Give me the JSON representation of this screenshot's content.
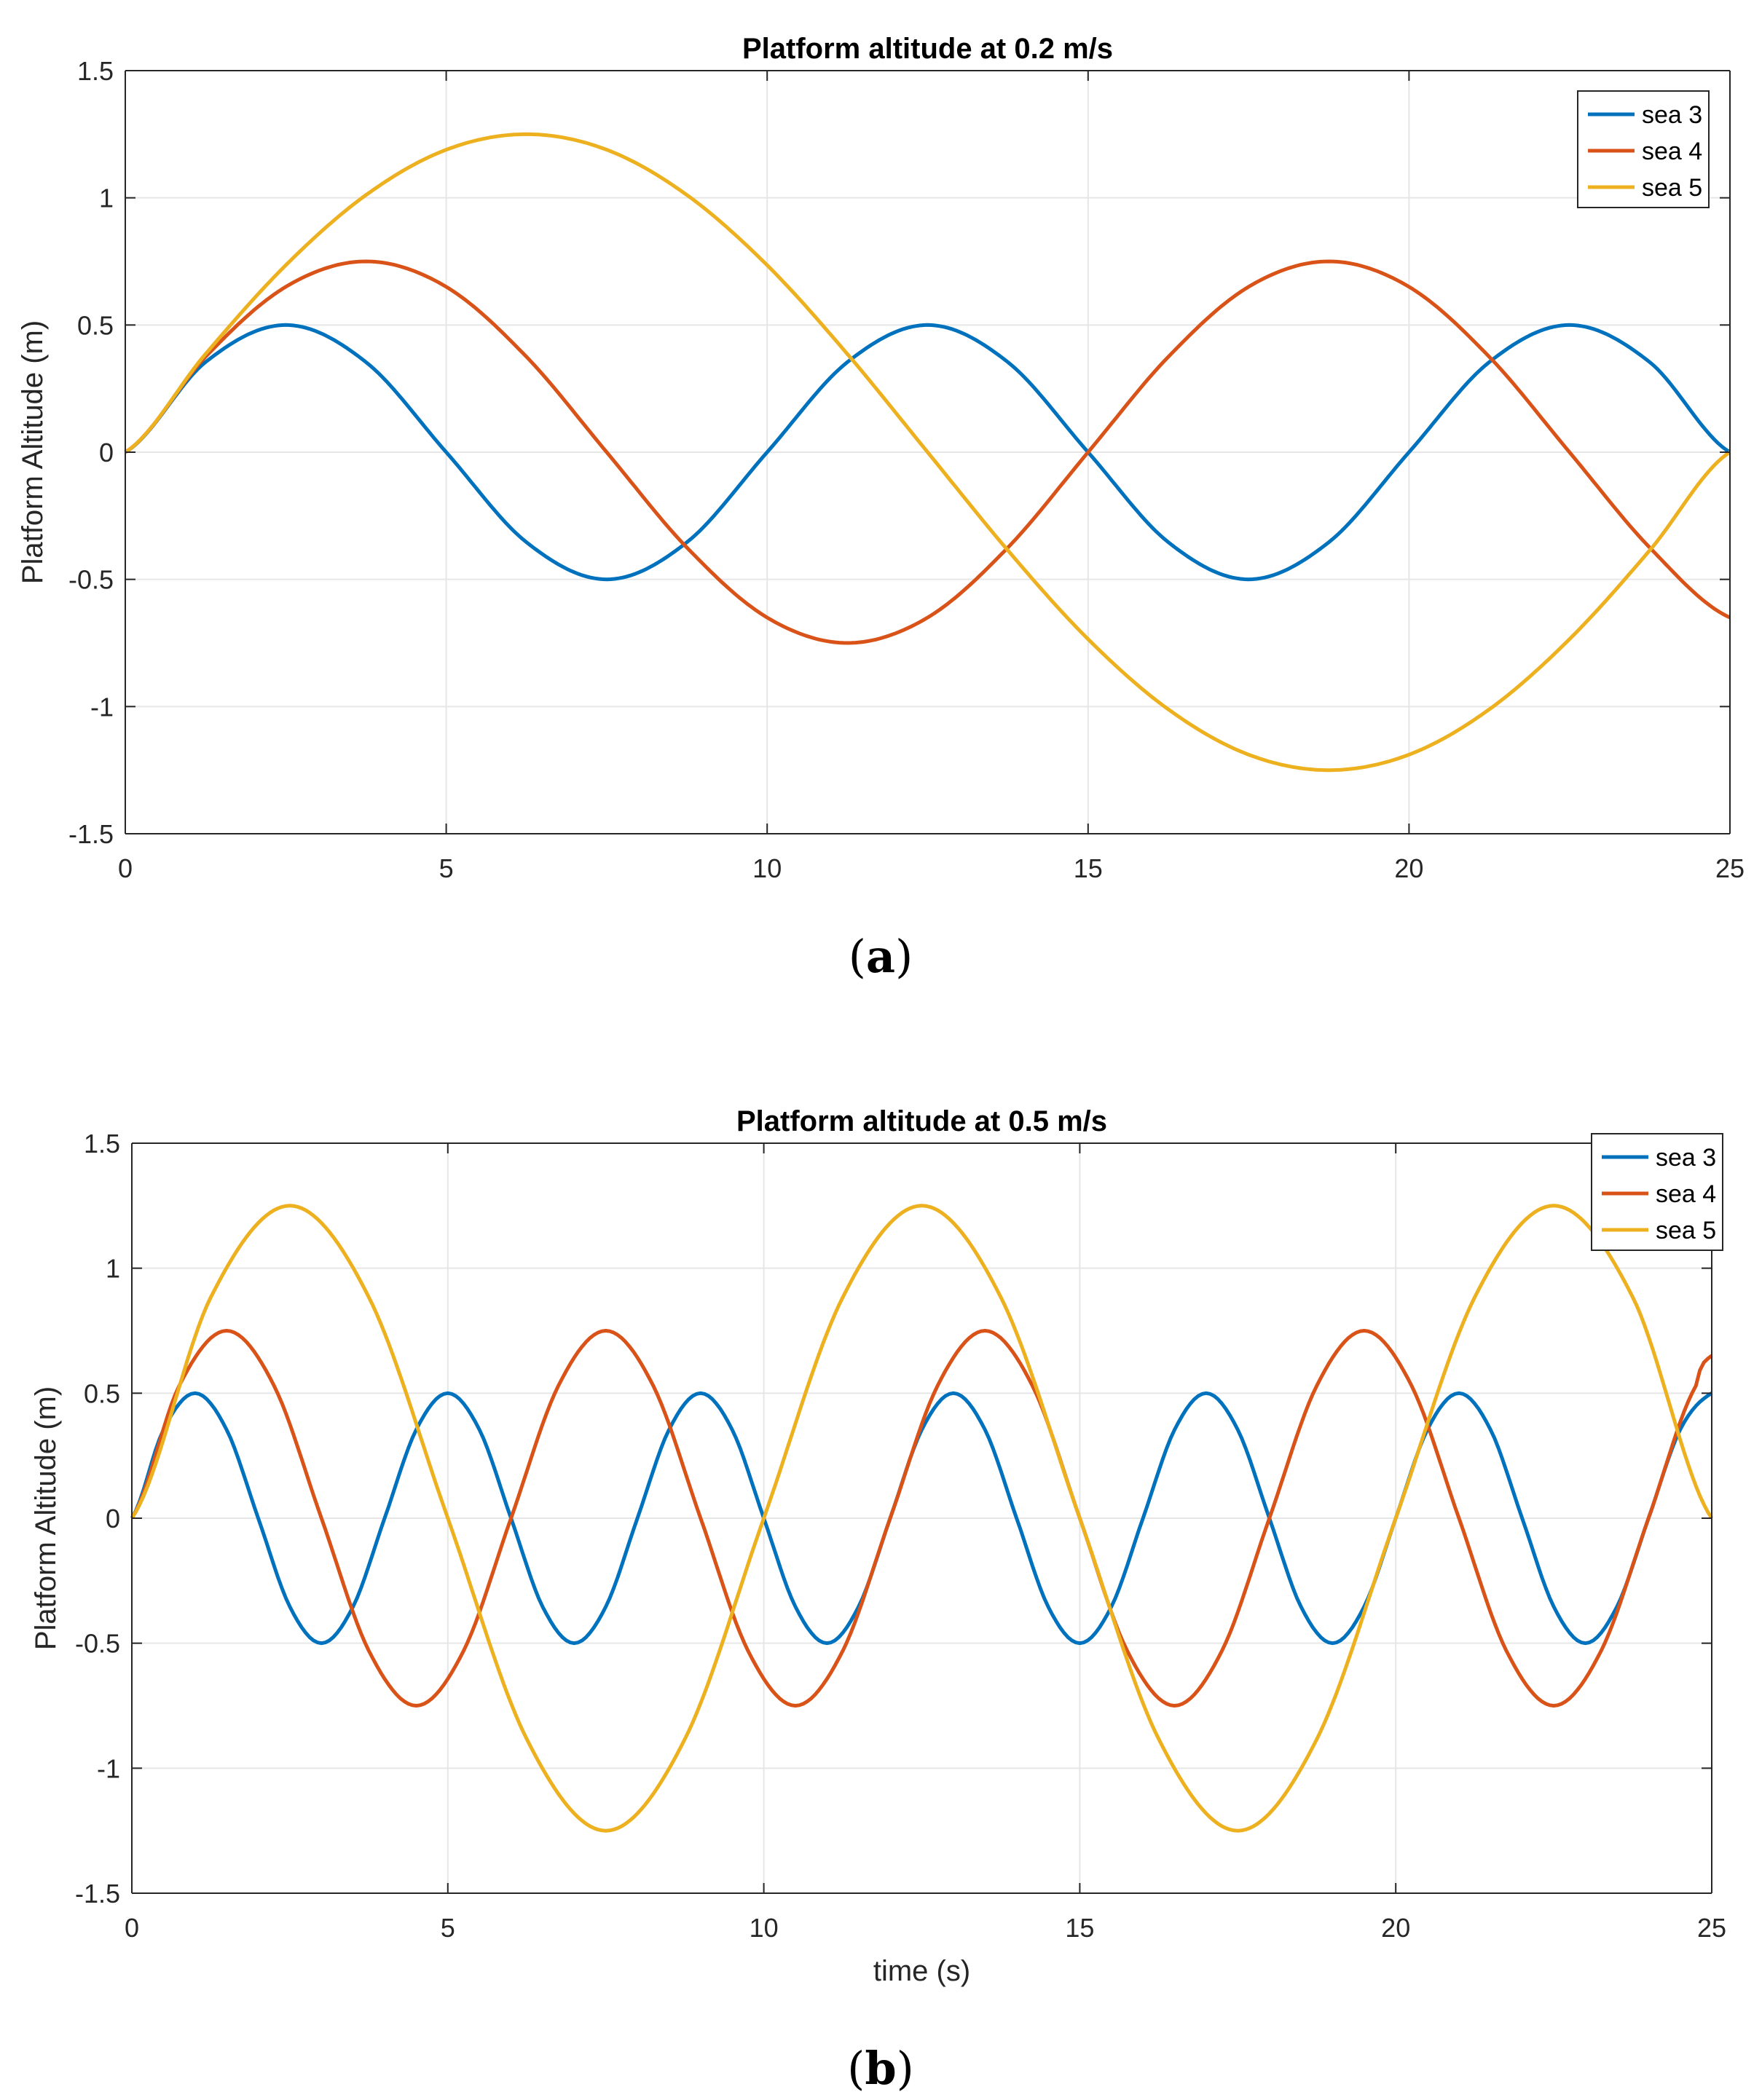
{
  "figure": {
    "panel_labels": [
      "a",
      "b"
    ]
  },
  "chart_data": [
    {
      "type": "line",
      "title": "Platform altitude at 0.2 m/s",
      "xlabel": "",
      "ylabel": "Platform Altitude (m)",
      "xlim": [
        0,
        25
      ],
      "ylim": [
        -1.5,
        1.5
      ],
      "xticks": [
        0,
        5,
        10,
        15,
        20,
        25
      ],
      "yticks": [
        -1.5,
        -1,
        -0.5,
        0,
        0.5,
        1,
        1.5
      ],
      "xtick_labels": [
        "0",
        "5",
        "10",
        "15",
        "20",
        "25"
      ],
      "ytick_labels": [
        "-1.5",
        "-1",
        "-0.5",
        "0",
        "0.5",
        "1",
        "1.5"
      ],
      "grid": true,
      "legend_position": "top-right",
      "series": [
        {
          "name": "sea 3",
          "color": "#0072BD",
          "x": [
            0,
            1.25,
            2.5,
            3.75,
            5,
            6.25,
            7.5,
            8.75,
            10,
            11.25,
            12.5,
            13.75,
            15,
            16.25,
            17.5,
            18.75,
            20,
            21.25,
            22.5,
            23.75,
            25
          ],
          "y": [
            0,
            0.354,
            0.5,
            0.354,
            0,
            -0.354,
            -0.5,
            -0.354,
            0,
            0.354,
            0.5,
            0.354,
            0,
            -0.354,
            -0.5,
            -0.354,
            0,
            0.354,
            0.5,
            0.354,
            0
          ]
        },
        {
          "name": "sea 4",
          "color": "#D95319",
          "x": [
            0,
            1.25,
            2.5,
            3.75,
            5,
            6.25,
            7.5,
            8.75,
            10,
            11.25,
            12.5,
            13.75,
            15,
            16.25,
            17.5,
            18.75,
            20,
            21.25,
            22.5,
            23.75,
            25
          ],
          "y": [
            0,
            0.375,
            0.65,
            0.75,
            0.65,
            0.375,
            0,
            -0.375,
            -0.65,
            -0.75,
            -0.65,
            -0.375,
            0,
            0.375,
            0.65,
            0.75,
            0.65,
            0.375,
            0,
            -0.375,
            -0.65
          ]
        },
        {
          "name": "sea 5",
          "color": "#EDB120",
          "x": [
            0,
            1.25,
            2.5,
            3.75,
            5,
            6.25,
            7.5,
            8.75,
            10,
            11.25,
            12.5,
            13.75,
            15,
            16.25,
            17.5,
            18.75,
            20,
            21.25,
            22.5,
            23.75,
            25
          ],
          "y": [
            0,
            0.386,
            0.735,
            1.011,
            1.189,
            1.25,
            1.189,
            1.011,
            0.735,
            0.386,
            0,
            -0.386,
            -0.735,
            -1.011,
            -1.189,
            -1.25,
            -1.189,
            -1.011,
            -0.735,
            -0.386,
            0
          ]
        }
      ]
    },
    {
      "type": "line",
      "title": "Platform altitude at 0.5 m/s",
      "xlabel": "time (s)",
      "ylabel": "Platform Altitude (m)",
      "xlim": [
        0,
        25
      ],
      "ylim": [
        -1.5,
        1.5
      ],
      "xticks": [
        0,
        5,
        10,
        15,
        20,
        25
      ],
      "yticks": [
        -1.5,
        -1,
        -0.5,
        0,
        0.5,
        1,
        1.5
      ],
      "xtick_labels": [
        "0",
        "5",
        "10",
        "15",
        "20",
        "25"
      ],
      "ytick_labels": [
        "-1.5",
        "-1",
        "-0.5",
        "0",
        "0.5",
        "1",
        "1.5"
      ],
      "grid": true,
      "legend_position": "top-right",
      "series": [
        {
          "name": "sea 3",
          "color": "#0072BD",
          "x": [
            0,
            0.5,
            1,
            1.5,
            2,
            2.5,
            3,
            3.5,
            4,
            4.5,
            5,
            5.5,
            6,
            6.5,
            7,
            7.5,
            8,
            8.5,
            9,
            9.5,
            10,
            10.5,
            11,
            11.5,
            12,
            12.5,
            13,
            13.5,
            14,
            14.5,
            15,
            15.5,
            16,
            16.5,
            17,
            17.5,
            18,
            18.5,
            19,
            19.5,
            20,
            20.5,
            21,
            21.5,
            22,
            22.5,
            23,
            23.5,
            24,
            24.5,
            25
          ],
          "y": [
            0,
            0.354,
            0.5,
            0.354,
            0,
            -0.354,
            -0.5,
            -0.354,
            0,
            0.354,
            0.5,
            0.354,
            0,
            -0.354,
            -0.5,
            -0.354,
            0,
            0.354,
            0.5,
            0.354,
            0,
            -0.354,
            -0.5,
            -0.354,
            0,
            0.354,
            0.5,
            0.354,
            0,
            -0.354,
            -0.5,
            -0.354,
            0,
            0.354,
            0.5,
            0.354,
            0,
            -0.354,
            -0.5,
            -0.354,
            0,
            0.354,
            0.5,
            0.354,
            0,
            -0.354,
            -0.5,
            -0.354,
            0,
            0.354,
            0.5
          ]
        },
        {
          "name": "sea 4",
          "color": "#D95319",
          "x": [
            0,
            0.75,
            1.5,
            2.25,
            3,
            3.75,
            4.5,
            5.25,
            6,
            6.75,
            7.5,
            8.25,
            9,
            9.75,
            10.5,
            11.25,
            12,
            12.75,
            13.5,
            14.25,
            15,
            15.75,
            16.5,
            17.25,
            18,
            18.75,
            19.5,
            20.25,
            21,
            21.75,
            22.5,
            23.25,
            24,
            24.75,
            25
          ],
          "y": [
            0,
            0.53,
            0.75,
            0.53,
            0,
            -0.53,
            -0.75,
            -0.53,
            0,
            0.53,
            0.75,
            0.53,
            0,
            -0.53,
            -0.75,
            -0.53,
            0,
            0.53,
            0.75,
            0.53,
            0,
            -0.53,
            -0.75,
            -0.53,
            0,
            0.53,
            0.75,
            0.53,
            0,
            -0.53,
            -0.75,
            -0.53,
            0,
            0.53,
            0.65
          ]
        },
        {
          "name": "sea 5",
          "color": "#EDB120",
          "x": [
            0,
            1.25,
            2.5,
            3.75,
            5,
            6.25,
            7.5,
            8.75,
            10,
            11.25,
            12.5,
            13.75,
            15,
            16.25,
            17.5,
            18.75,
            20,
            21.25,
            22.5,
            23.75,
            25
          ],
          "y": [
            0,
            0.884,
            1.25,
            0.884,
            0,
            -0.884,
            -1.25,
            -0.884,
            0,
            0.884,
            1.25,
            0.884,
            0,
            -0.884,
            -1.25,
            -0.884,
            0,
            0.884,
            1.25,
            0.884,
            0
          ]
        }
      ]
    }
  ]
}
